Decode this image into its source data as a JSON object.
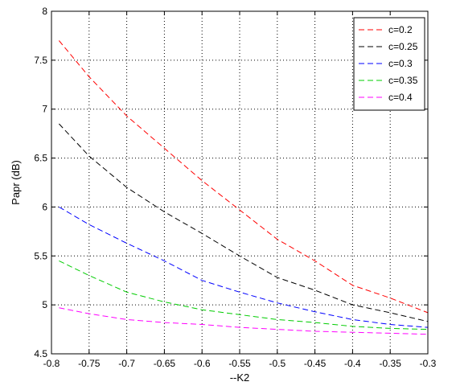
{
  "chart_data": {
    "type": "line",
    "title": "",
    "xlabel": "--K2",
    "ylabel": "Papr (dB)",
    "xlim": [
      -0.8,
      -0.3
    ],
    "ylim": [
      4.5,
      8
    ],
    "x_ticks": [
      -0.8,
      -0.75,
      -0.7,
      -0.65,
      -0.6,
      -0.55,
      -0.5,
      -0.45,
      -0.4,
      -0.35,
      -0.3
    ],
    "x_tick_labels": [
      "-0.8",
      "-0.75",
      "-0.7",
      "-0.65",
      "-0.6",
      "-0.55",
      "-0.5",
      "-0.45",
      "-0.4",
      "-0.35",
      "-0.3"
    ],
    "y_ticks": [
      4.5,
      5,
      5.5,
      6,
      6.5,
      7,
      7.5,
      8
    ],
    "y_tick_labels": [
      "4.5",
      "5",
      "5.5",
      "6",
      "6.5",
      "7",
      "7.5",
      "8"
    ],
    "grid": true,
    "legend_position": "top-right",
    "line_style": "dashed",
    "x": [
      -0.79,
      -0.75,
      -0.7,
      -0.65,
      -0.6,
      -0.55,
      -0.5,
      -0.45,
      -0.4,
      -0.35,
      -0.3
    ],
    "series": [
      {
        "name": "c=0.2",
        "color": "#ff0000",
        "values": [
          7.7,
          7.33,
          6.93,
          6.6,
          6.27,
          5.97,
          5.67,
          5.45,
          5.2,
          5.07,
          4.92
        ]
      },
      {
        "name": "c=0.25",
        "color": "#000000",
        "values": [
          6.85,
          6.52,
          6.2,
          5.95,
          5.73,
          5.5,
          5.28,
          5.15,
          5.0,
          4.92,
          4.83
        ]
      },
      {
        "name": "c=0.3",
        "color": "#0000ff",
        "values": [
          6.0,
          5.82,
          5.63,
          5.45,
          5.25,
          5.13,
          5.02,
          4.93,
          4.85,
          4.8,
          4.77
        ]
      },
      {
        "name": "c=0.35",
        "color": "#00cc00",
        "values": [
          5.45,
          5.3,
          5.13,
          5.03,
          4.95,
          4.9,
          4.85,
          4.82,
          4.78,
          4.76,
          4.75
        ]
      },
      {
        "name": "c=0.4",
        "color": "#ff00ff",
        "values": [
          4.97,
          4.91,
          4.85,
          4.82,
          4.8,
          4.77,
          4.75,
          4.73,
          4.72,
          4.71,
          4.7
        ]
      }
    ]
  }
}
